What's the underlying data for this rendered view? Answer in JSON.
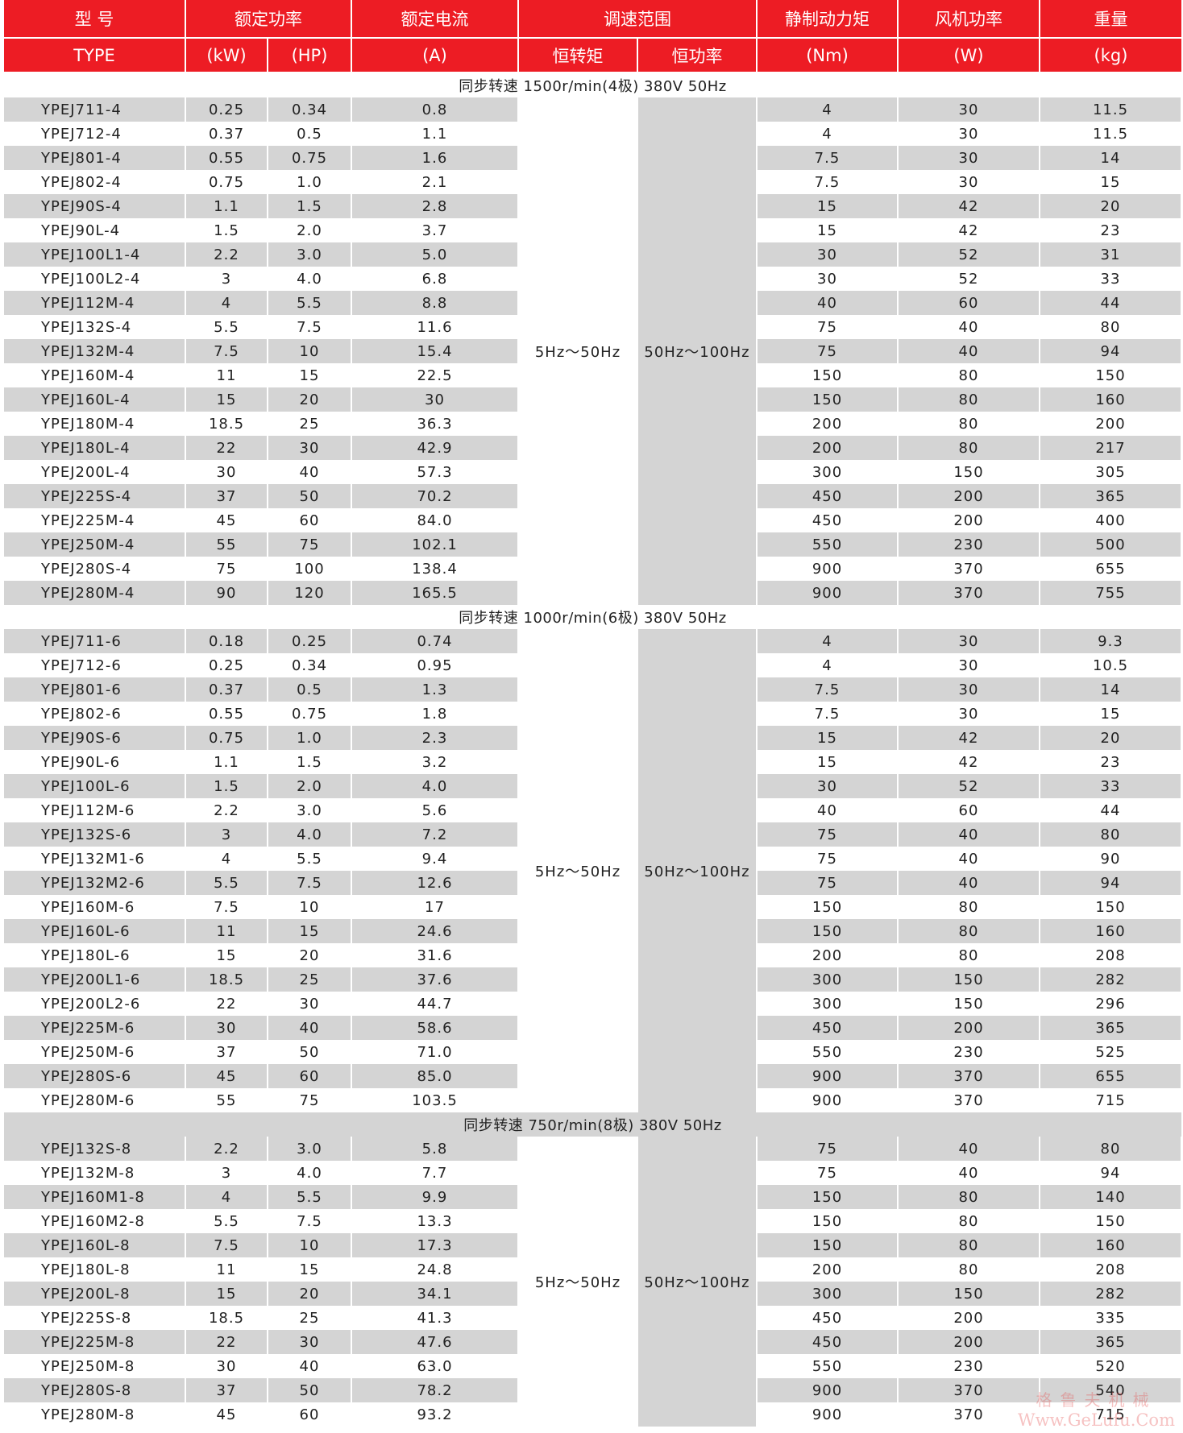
{
  "header": {
    "row1": [
      "型 号",
      "额定功率",
      "额定电流",
      "调速范围",
      "静制动力矩",
      "风机功率",
      "重量"
    ],
    "row2": [
      "TYPE",
      "(kW)",
      "(HP)",
      "(A)",
      "恒转矩",
      "恒功率",
      "(Nm)",
      "(W)",
      "(kg)"
    ]
  },
  "colors": {
    "header_bg": "#ed1c24",
    "stripe": "#d4d4d4"
  },
  "sections": [
    {
      "label": "同步转速 1500r/min(4极) 380V 50Hz",
      "constant_torque": "5Hz～50Hz",
      "constant_power": "50Hz～100Hz",
      "rows": [
        [
          "YPEJ711-4",
          "0.25",
          "0.34",
          "0.8",
          "4",
          "30",
          "11.5"
        ],
        [
          "YPEJ712-4",
          "0.37",
          "0.5",
          "1.1",
          "4",
          "30",
          "11.5"
        ],
        [
          "YPEJ801-4",
          "0.55",
          "0.75",
          "1.6",
          "7.5",
          "30",
          "14"
        ],
        [
          "YPEJ802-4",
          "0.75",
          "1.0",
          "2.1",
          "7.5",
          "30",
          "15"
        ],
        [
          "YPEJ90S-4",
          "1.1",
          "1.5",
          "2.8",
          "15",
          "42",
          "20"
        ],
        [
          "YPEJ90L-4",
          "1.5",
          "2.0",
          "3.7",
          "15",
          "42",
          "23"
        ],
        [
          "YPEJ100L1-4",
          "2.2",
          "3.0",
          "5.0",
          "30",
          "52",
          "31"
        ],
        [
          "YPEJ100L2-4",
          "3",
          "4.0",
          "6.8",
          "30",
          "52",
          "33"
        ],
        [
          "YPEJ112M-4",
          "4",
          "5.5",
          "8.8",
          "40",
          "60",
          "44"
        ],
        [
          "YPEJ132S-4",
          "5.5",
          "7.5",
          "11.6",
          "75",
          "40",
          "80"
        ],
        [
          "YPEJ132M-4",
          "7.5",
          "10",
          "15.4",
          "75",
          "40",
          "94"
        ],
        [
          "YPEJ160M-4",
          "11",
          "15",
          "22.5",
          "150",
          "80",
          "150"
        ],
        [
          "YPEJ160L-4",
          "15",
          "20",
          "30",
          "150",
          "80",
          "160"
        ],
        [
          "YPEJ180M-4",
          "18.5",
          "25",
          "36.3",
          "200",
          "80",
          "200"
        ],
        [
          "YPEJ180L-4",
          "22",
          "30",
          "42.9",
          "200",
          "80",
          "217"
        ],
        [
          "YPEJ200L-4",
          "30",
          "40",
          "57.3",
          "300",
          "150",
          "305"
        ],
        [
          "YPEJ225S-4",
          "37",
          "50",
          "70.2",
          "450",
          "200",
          "365"
        ],
        [
          "YPEJ225M-4",
          "45",
          "60",
          "84.0",
          "450",
          "200",
          "400"
        ],
        [
          "YPEJ250M-4",
          "55",
          "75",
          "102.1",
          "550",
          "230",
          "500"
        ],
        [
          "YPEJ280S-4",
          "75",
          "100",
          "138.4",
          "900",
          "370",
          "655"
        ],
        [
          "YPEJ280M-4",
          "90",
          "120",
          "165.5",
          "900",
          "370",
          "755"
        ]
      ]
    },
    {
      "label": "同步转速 1000r/min(6极) 380V 50Hz",
      "constant_torque": "5Hz～50Hz",
      "constant_power": "50Hz～100Hz",
      "rows": [
        [
          "YPEJ711-6",
          "0.18",
          "0.25",
          "0.74",
          "4",
          "30",
          "9.3"
        ],
        [
          "YPEJ712-6",
          "0.25",
          "0.34",
          "0.95",
          "4",
          "30",
          "10.5"
        ],
        [
          "YPEJ801-6",
          "0.37",
          "0.5",
          "1.3",
          "7.5",
          "30",
          "14"
        ],
        [
          "YPEJ802-6",
          "0.55",
          "0.75",
          "1.8",
          "7.5",
          "30",
          "15"
        ],
        [
          "YPEJ90S-6",
          "0.75",
          "1.0",
          "2.3",
          "15",
          "42",
          "20"
        ],
        [
          "YPEJ90L-6",
          "1.1",
          "1.5",
          "3.2",
          "15",
          "42",
          "23"
        ],
        [
          "YPEJ100L-6",
          "1.5",
          "2.0",
          "4.0",
          "30",
          "52",
          "33"
        ],
        [
          "YPEJ112M-6",
          "2.2",
          "3.0",
          "5.6",
          "40",
          "60",
          "44"
        ],
        [
          "YPEJ132S-6",
          "3",
          "4.0",
          "7.2",
          "75",
          "40",
          "80"
        ],
        [
          "YPEJ132M1-6",
          "4",
          "5.5",
          "9.4",
          "75",
          "40",
          "90"
        ],
        [
          "YPEJ132M2-6",
          "5.5",
          "7.5",
          "12.6",
          "75",
          "40",
          "94"
        ],
        [
          "YPEJ160M-6",
          "7.5",
          "10",
          "17",
          "150",
          "80",
          "150"
        ],
        [
          "YPEJ160L-6",
          "11",
          "15",
          "24.6",
          "150",
          "80",
          "160"
        ],
        [
          "YPEJ180L-6",
          "15",
          "20",
          "31.6",
          "200",
          "80",
          "208"
        ],
        [
          "YPEJ200L1-6",
          "18.5",
          "25",
          "37.6",
          "300",
          "150",
          "282"
        ],
        [
          "YPEJ200L2-6",
          "22",
          "30",
          "44.7",
          "300",
          "150",
          "296"
        ],
        [
          "YPEJ225M-6",
          "30",
          "40",
          "58.6",
          "450",
          "200",
          "365"
        ],
        [
          "YPEJ250M-6",
          "37",
          "50",
          "71.0",
          "550",
          "230",
          "525"
        ],
        [
          "YPEJ280S-6",
          "45",
          "60",
          "85.0",
          "900",
          "370",
          "655"
        ],
        [
          "YPEJ280M-6",
          "55",
          "75",
          "103.5",
          "900",
          "370",
          "715"
        ]
      ]
    },
    {
      "label": "同步转速 750r/min(8极) 380V 50Hz",
      "constant_torque": "5Hz～50Hz",
      "constant_power": "50Hz～100Hz",
      "rows": [
        [
          "YPEJ132S-8",
          "2.2",
          "3.0",
          "5.8",
          "75",
          "40",
          "80"
        ],
        [
          "YPEJ132M-8",
          "3",
          "4.0",
          "7.7",
          "75",
          "40",
          "94"
        ],
        [
          "YPEJ160M1-8",
          "4",
          "5.5",
          "9.9",
          "150",
          "80",
          "140"
        ],
        [
          "YPEJ160M2-8",
          "5.5",
          "7.5",
          "13.3",
          "150",
          "80",
          "150"
        ],
        [
          "YPEJ160L-8",
          "7.5",
          "10",
          "17.3",
          "150",
          "80",
          "160"
        ],
        [
          "YPEJ180L-8",
          "11",
          "15",
          "24.8",
          "200",
          "80",
          "208"
        ],
        [
          "YPEJ200L-8",
          "15",
          "20",
          "34.1",
          "300",
          "150",
          "282"
        ],
        [
          "YPEJ225S-8",
          "18.5",
          "25",
          "41.3",
          "450",
          "200",
          "335"
        ],
        [
          "YPEJ225M-8",
          "22",
          "30",
          "47.6",
          "450",
          "200",
          "365"
        ],
        [
          "YPEJ250M-8",
          "30",
          "40",
          "63.0",
          "550",
          "230",
          "520"
        ],
        [
          "YPEJ280S-8",
          "37",
          "50",
          "78.2",
          "900",
          "370",
          "540"
        ],
        [
          "YPEJ280M-8",
          "45",
          "60",
          "93.2",
          "900",
          "370",
          "715"
        ]
      ]
    }
  ],
  "watermark": {
    "line1": "格鲁夫机械",
    "line2": "Www.GeLufu.Com"
  }
}
